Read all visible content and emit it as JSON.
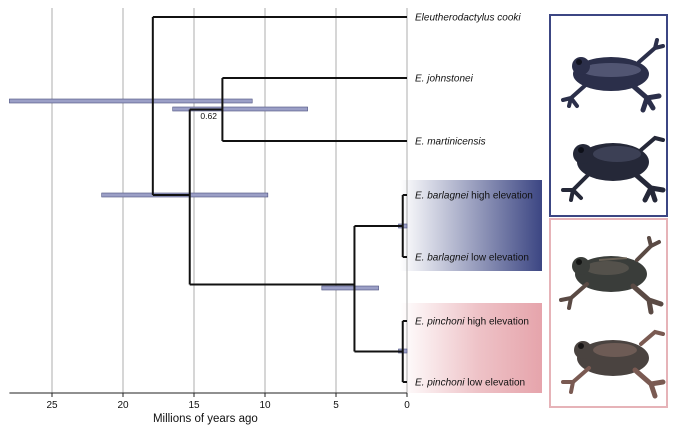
{
  "figure": {
    "x_axis_label": "Millions of years ago",
    "x_ticks": [
      25,
      20,
      15,
      10,
      5,
      0
    ],
    "x_range_mya": [
      28,
      0
    ],
    "grid_vertical": true
  },
  "tips": [
    {
      "key": "cooki",
      "species": "Eleutherodactylus cooki",
      "suffix": ""
    },
    {
      "key": "johnstonei",
      "species": "E. johnstonei",
      "suffix": ""
    },
    {
      "key": "martinicensis",
      "species": "E. martinicensis",
      "suffix": ""
    },
    {
      "key": "barlagnei_high",
      "species": "E. barlagnei",
      "suffix": " high elevation"
    },
    {
      "key": "barlagnei_low",
      "species": "E. barlagnei",
      "suffix": " low elevation"
    },
    {
      "key": "pinchoni_high",
      "species": "E. pinchoni",
      "suffix": " high elevation"
    },
    {
      "key": "pinchoni_low",
      "species": "E. pinchoni",
      "suffix": " low elevation"
    }
  ],
  "nodes": [
    {
      "name": "root",
      "age_mya": 17.9,
      "ci_mya": [
        28.0,
        10.9
      ]
    },
    {
      "name": "johnstonei-martinicensis",
      "age_mya": 13.0,
      "ci_mya": [
        16.5,
        7.0
      ],
      "support_label": "0.62"
    },
    {
      "name": "main-clade",
      "age_mya": 17.9,
      "ci_mya": [
        21.5,
        9.8
      ]
    },
    {
      "name": "barlagnei-pinchoni",
      "age_mya": 15.3,
      "ci_mya": [
        21.5,
        9.8
      ]
    },
    {
      "name": "barlagnei-pinchoni-split",
      "age_mya": 3.7,
      "ci_mya": [
        6.0,
        2.0
      ]
    },
    {
      "name": "barlagnei-pops",
      "age_mya": 0.3,
      "ci_mya": [
        0.6,
        0.0
      ]
    },
    {
      "name": "pinchoni-pops",
      "age_mya": 0.3,
      "ci_mya": [
        0.6,
        0.0
      ]
    }
  ],
  "colors": {
    "tree_line": "#111111",
    "grid_line": "#9a9a9a",
    "ci_bar_fill": "#9b9fc6",
    "ci_bar_stroke": "#4b507f",
    "barlagnei_band": "#3c4683",
    "pinchoni_band": "#e39aa2",
    "frame_blue": "#3c4683",
    "frame_pink": "#e6b3b8"
  },
  "photos": [
    {
      "group": "johnstonei-martinicensis",
      "icon": "frog-icon",
      "count": 2
    },
    {
      "group": "barlagnei-pinchoni",
      "icon": "frog-icon",
      "count": 2
    }
  ]
}
